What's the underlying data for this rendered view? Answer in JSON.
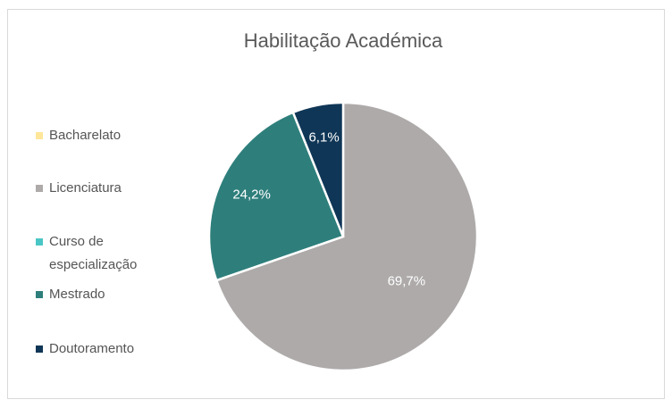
{
  "chart_data": {
    "type": "pie",
    "title": "Habilitação Académica",
    "categories": [
      "Bacharelato",
      "Licenciatura",
      "Curso de especialização",
      "Mestrado",
      "Doutoramento"
    ],
    "values": [
      0,
      69.7,
      0,
      24.2,
      6.1
    ],
    "value_labels": [
      null,
      "69,7%",
      null,
      "24,2%",
      "6,1%"
    ],
    "colors": [
      "#ffe699",
      "#aeaaaa",
      "#4bc6c6",
      "#2e7f7c",
      "#0f3656"
    ],
    "legend": "left"
  }
}
